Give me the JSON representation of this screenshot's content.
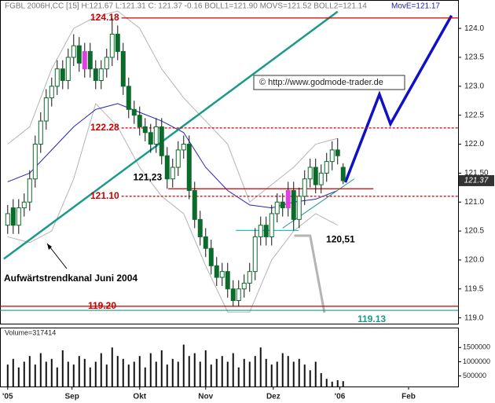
{
  "chart_data": {
    "type": "candlestick",
    "header": "FGBL 2006H,CC [15] H:121.67 L:121.31 C: 121.37 -0.16 BOLL1=121.90 MOVS=121.52 BOLL2=121.14",
    "header_ma": "MovE=121.17",
    "x": [
      0,
      1,
      2,
      3,
      4,
      5,
      6,
      7,
      8,
      9,
      10,
      11,
      12,
      13,
      14,
      15,
      16,
      17,
      18,
      19,
      20,
      21,
      22,
      23,
      24,
      25,
      26,
      27,
      28,
      29,
      30,
      31,
      32,
      33,
      34,
      35,
      36,
      37,
      38,
      39,
      40,
      41,
      42,
      43,
      44,
      45,
      46,
      47,
      48,
      49,
      50,
      51,
      52,
      53,
      54,
      55,
      56,
      57,
      58,
      59,
      60,
      61
    ],
    "open": [
      120.6,
      120.9,
      120.6,
      120.9,
      121.0,
      121.4,
      122.0,
      122.4,
      122.8,
      123.0,
      123.3,
      123.1,
      123.5,
      123.7,
      123.3,
      123.6,
      123.3,
      123.1,
      123.3,
      123.5,
      123.9,
      123.6,
      123.0,
      122.6,
      122.5,
      122.3,
      122.2,
      122.0,
      122.3,
      121.8,
      121.4,
      121.6,
      121.9,
      122.0,
      121.2,
      120.7,
      120.4,
      120.2,
      119.9,
      119.7,
      119.8,
      119.5,
      119.3,
      119.5,
      119.6,
      119.8,
      120.4,
      120.6,
      120.4,
      120.8,
      121.0,
      120.9,
      121.2,
      120.7,
      121.1,
      121.4,
      121.6,
      121.3,
      121.5,
      121.7,
      121.9,
      121.6
    ],
    "high": [
      120.95,
      121.05,
      121.05,
      121.15,
      121.55,
      122.15,
      122.55,
      122.95,
      123.15,
      123.45,
      123.45,
      123.65,
      123.9,
      123.85,
      123.75,
      123.75,
      123.45,
      123.45,
      123.65,
      124.18,
      124.05,
      123.75,
      123.15,
      122.75,
      122.65,
      122.45,
      122.35,
      122.45,
      122.45,
      121.95,
      121.75,
      122.05,
      122.15,
      122.15,
      121.35,
      120.85,
      120.55,
      120.35,
      120.05,
      119.95,
      119.95,
      119.65,
      119.65,
      119.75,
      119.95,
      120.55,
      120.75,
      120.75,
      120.95,
      121.15,
      121.15,
      121.35,
      121.35,
      121.25,
      121.55,
      121.75,
      121.75,
      121.65,
      121.85,
      122.05,
      122.1,
      121.67
    ],
    "low": [
      120.45,
      120.45,
      120.45,
      120.75,
      120.85,
      121.25,
      121.85,
      122.25,
      122.65,
      122.85,
      122.95,
      122.95,
      123.35,
      123.25,
      123.15,
      123.15,
      122.95,
      122.95,
      123.15,
      123.35,
      123.45,
      122.85,
      122.45,
      122.35,
      122.15,
      122.05,
      121.85,
      121.85,
      121.65,
      121.23,
      121.25,
      121.45,
      121.75,
      121.05,
      120.55,
      120.25,
      120.05,
      119.75,
      119.55,
      119.55,
      119.35,
      119.2,
      119.2,
      119.35,
      119.45,
      119.65,
      120.25,
      120.25,
      120.25,
      120.65,
      120.75,
      120.75,
      120.51,
      120.55,
      120.95,
      121.25,
      121.15,
      121.15,
      121.35,
      121.55,
      121.65,
      121.31
    ],
    "close": [
      120.8,
      120.6,
      120.9,
      121.0,
      121.4,
      122.0,
      122.4,
      122.8,
      123.0,
      123.3,
      123.1,
      123.5,
      123.7,
      123.4,
      123.6,
      123.3,
      123.1,
      123.3,
      123.5,
      123.9,
      123.6,
      123.0,
      122.6,
      122.5,
      122.3,
      122.2,
      122.0,
      122.3,
      121.8,
      121.4,
      121.6,
      121.9,
      122.0,
      121.2,
      120.7,
      120.4,
      120.2,
      119.9,
      119.7,
      119.8,
      119.5,
      119.3,
      119.5,
      119.6,
      119.8,
      120.4,
      120.6,
      120.4,
      120.8,
      121.0,
      120.9,
      121.2,
      120.7,
      121.1,
      121.4,
      121.6,
      121.3,
      121.5,
      121.7,
      121.9,
      121.8,
      121.37
    ],
    "color": "#0b6b2b",
    "up_color": "#ffffff",
    "highlight": [
      14,
      51
    ],
    "highlight_color": "#e040e0",
    "xlim": [
      -1.4,
      81.9
    ],
    "xticks": [
      {
        "value": 0,
        "label": "'05"
      },
      {
        "value": 11.7,
        "label": "Sep"
      },
      {
        "value": 24,
        "label": "Okt"
      },
      {
        "value": 36,
        "label": "Nov"
      },
      {
        "value": 48.3,
        "label": "Dez"
      },
      {
        "value": 60.4,
        "label": "'06"
      },
      {
        "value": 72.9,
        "label": "Feb"
      }
    ],
    "ylim": [
      118.9,
      124.49
    ],
    "yticks": [
      {
        "value": 119,
        "label": "119.0"
      },
      119.5,
      {
        "value": 120,
        "label": "120.0"
      },
      120.5,
      {
        "value": 121,
        "label": "121.0"
      },
      {
        "value": 121.5,
        "label": "121.50"
      },
      {
        "value": 122,
        "label": "122.0"
      },
      122.5,
      {
        "value": 123,
        "label": "123.0"
      },
      123.5,
      {
        "value": 124,
        "label": "124.0"
      }
    ],
    "lines": [
      {
        "color": "#b4b4b4",
        "width": 1,
        "x": [
          0,
          4,
          8,
          12,
          16,
          20,
          24,
          28,
          32,
          36,
          40,
          44,
          48,
          52,
          56,
          60
        ],
        "values": [
          122.0,
          122.3,
          123.3,
          124.0,
          124.2,
          124.3,
          124.0,
          123.3,
          122.8,
          122.4,
          122.0,
          121.0,
          121.3,
          121.6,
          122.0,
          122.1
        ]
      },
      {
        "color": "#b4b4b4",
        "width": 1,
        "x": [
          0,
          4,
          8,
          12,
          16,
          20,
          24,
          28,
          32,
          36,
          40,
          44,
          48,
          52,
          56,
          60
        ],
        "values": [
          120.4,
          120.3,
          120.5,
          121.4,
          122.7,
          122.3,
          121.6,
          121.1,
          120.8,
          119.9,
          119.1,
          119.1,
          120.0,
          120.5,
          120.8,
          120.6
        ]
      },
      {
        "color": "#2424b8",
        "width": 1,
        "x": [
          0,
          4,
          8,
          12,
          16,
          20,
          24,
          28,
          32,
          36,
          40,
          44,
          48,
          52,
          56,
          60
        ],
        "values": [
          121.35,
          121.5,
          121.9,
          122.3,
          122.6,
          122.7,
          122.55,
          122.4,
          122.2,
          121.6,
          121.2,
          120.95,
          120.9,
          121.0,
          121.05,
          121.2
        ]
      },
      {
        "color": "#1a9a8a",
        "width": 2.5,
        "x": [
          -0.7,
          60
        ],
        "values": [
          120.02,
          124.29
        ]
      },
      {
        "color": "#1a9a8a",
        "width": 1,
        "x": [
          50,
          63
        ],
        "values": [
          120.55,
          121.4
        ]
      },
      {
        "color": "#b4b4b4",
        "width": 3,
        "x": [
          52.1,
          55,
          57.6
        ],
        "values": [
          120.42,
          120.42,
          119.09
        ]
      },
      {
        "color": "#1010c8",
        "width": 3.5,
        "x": [
          61.4,
          67.6,
          69.6,
          80.7
        ],
        "values": [
          121.34,
          122.86,
          122.35,
          124.22
        ]
      }
    ],
    "levels": [
      {
        "value": 124.18,
        "label": "124.18",
        "color": "#cc0000",
        "dash": false,
        "x": [
          20.7,
          81.9
        ]
      },
      {
        "value": 122.28,
        "label": "122.28",
        "color": "#cc0000",
        "dash": true,
        "x": [
          20.7,
          81.9
        ]
      },
      {
        "value": 121.1,
        "label": "121.10",
        "color": "#cc0000",
        "dash": true,
        "x": [
          20.7,
          81.9
        ]
      },
      {
        "value": 119.2,
        "label": "119.20",
        "color": "#cc0000",
        "dash": false,
        "x": [
          -1.4,
          81.9
        ]
      },
      {
        "value": 119.13,
        "label": "119.13",
        "color": "#1a9a8a",
        "dash": false,
        "x": [
          -1.4,
          81.9
        ]
      },
      {
        "value": 121.23,
        "label": "121,23",
        "color": "#cc0000",
        "dash": false,
        "x": [
          29.2,
          66.5
        ]
      },
      {
        "value": 120.51,
        "label": "120,51",
        "color": "#20c0c0",
        "dash": false,
        "x": [
          41.5,
          52.9
        ]
      }
    ],
    "annotations": [
      "© http://www.godmode-trader.de",
      "Aufwärtstrendkanal Juni 2004"
    ],
    "price_tag": {
      "value": 121.37,
      "label": "121.37"
    },
    "volume": {
      "label": "Volume=317414",
      "color": "#111111",
      "values": [
        900000,
        1100000,
        800000,
        1000000,
        1200000,
        900000,
        1300000,
        1000000,
        1100000,
        800000,
        1400000,
        1000000,
        900000,
        1200000,
        1100000,
        800000,
        1000000,
        1300000,
        900000,
        1500000,
        1200000,
        1100000,
        900000,
        1000000,
        1200000,
        800000,
        1300000,
        1000000,
        1400000,
        900000,
        1100000,
        1000000,
        1600000,
        1200000,
        1300000,
        1000000,
        1400000,
        900000,
        1100000,
        1200000,
        1000000,
        1300000,
        800000,
        1100000,
        1000000,
        1200000,
        1500000,
        1100000,
        900000,
        1000000,
        1300000,
        1200000,
        1000000,
        1100000,
        900000,
        700000,
        1000000,
        600000,
        400000,
        300000,
        350000,
        317414
      ],
      "ylim": [
        130000,
        2170000
      ],
      "yticks": [
        500000,
        1000000,
        1500000
      ]
    }
  }
}
